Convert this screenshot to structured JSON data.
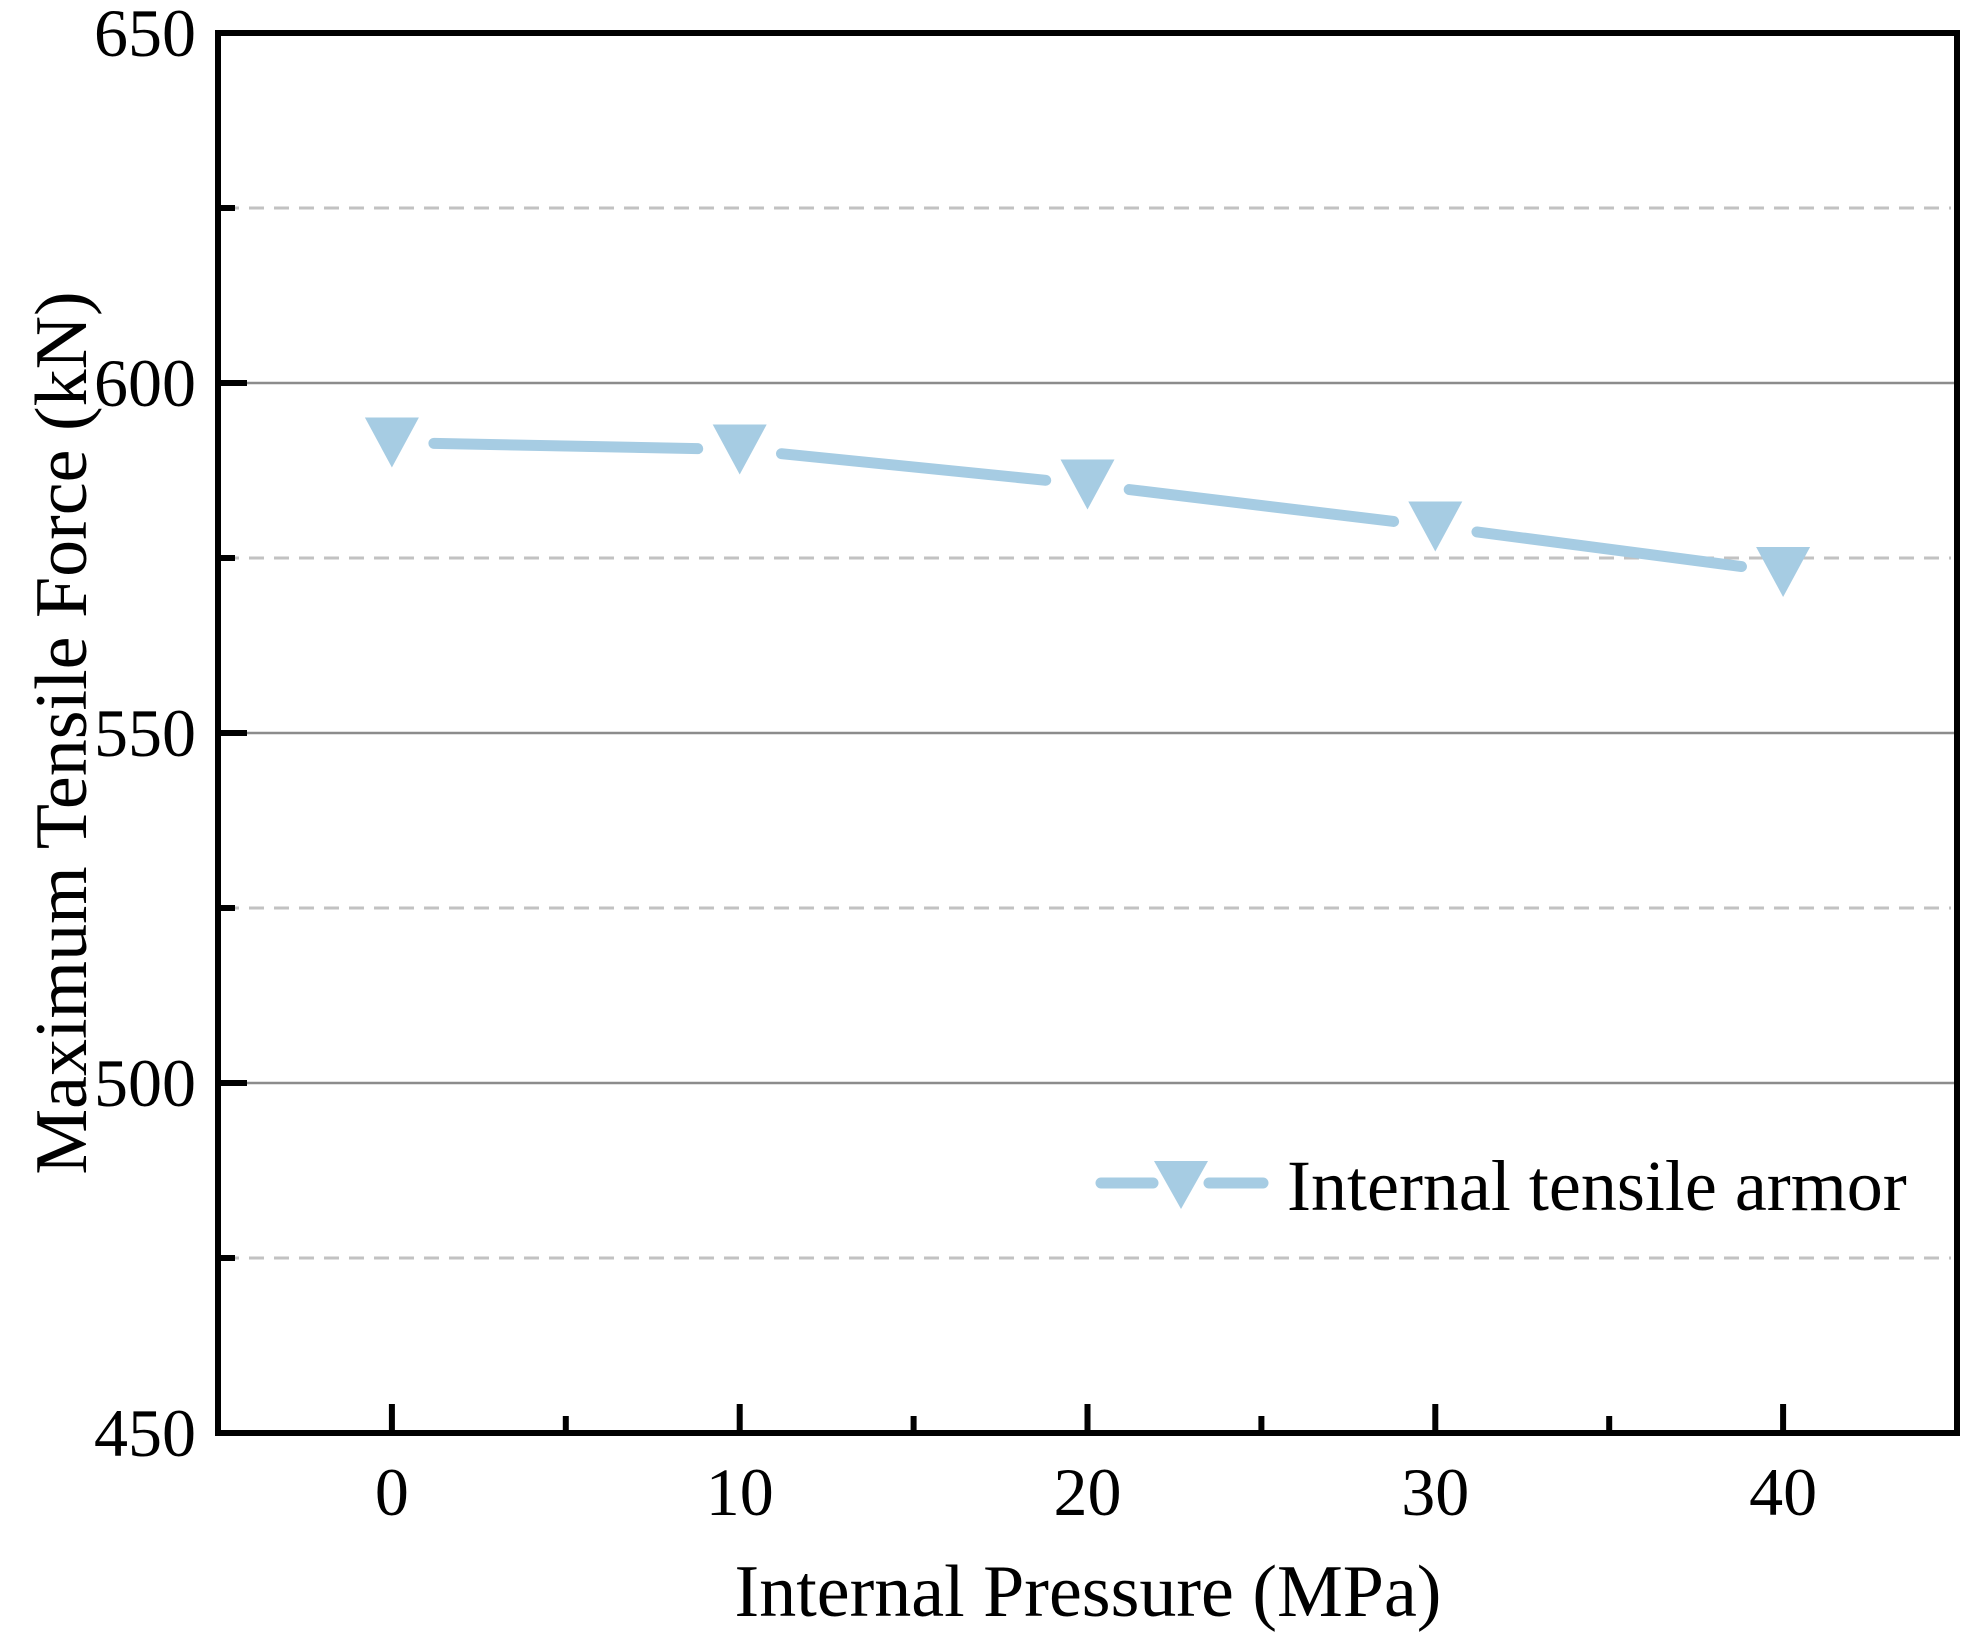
{
  "chart_data": {
    "type": "line",
    "title": "",
    "xlabel": "Internal Pressure (MPa)",
    "ylabel": "Maximum Tensile Force (kN)",
    "xlim": [
      -5,
      45
    ],
    "ylim": [
      450,
      650
    ],
    "x": [
      0,
      10,
      20,
      30,
      40
    ],
    "series": [
      {
        "name": "Internal tensile armor",
        "values": [
          591.5,
          590.5,
          585.5,
          579.5,
          573
        ],
        "color": "#A6CCE3",
        "marker": "triangle-down"
      }
    ],
    "x_major_ticks": [
      0,
      10,
      20,
      30,
      40
    ],
    "x_minor_ticks": [
      5,
      15,
      25,
      35
    ],
    "x_tick_labels": [
      "0",
      "10",
      "20",
      "30",
      "40"
    ],
    "y_major_ticks": [
      450,
      500,
      550,
      600,
      650
    ],
    "y_minor_ticks": [
      475,
      525,
      575,
      625
    ],
    "y_tick_labels": [
      "450",
      "500",
      "550",
      "600",
      "650"
    ],
    "grid": {
      "major": {
        "style": "solid",
        "color": "#8C8C8C",
        "at": [
          500,
          550,
          600
        ]
      },
      "minor": {
        "style": "dashed",
        "color": "#C2C2C2",
        "at": [
          475,
          525,
          575,
          625
        ]
      }
    },
    "legend": {
      "position": "inside-lower-right",
      "entries": [
        "Internal tensile armor"
      ]
    },
    "axis_color": "#000000",
    "background": "#FFFFFF"
  }
}
